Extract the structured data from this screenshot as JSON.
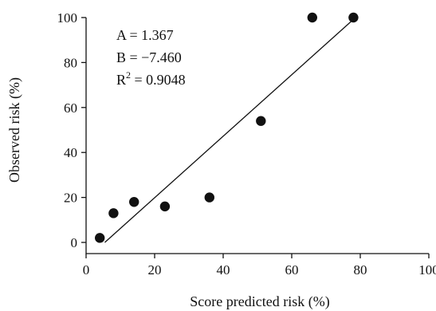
{
  "chart_data": {
    "type": "scatter",
    "xlabel": "Score predicted risk (%)",
    "ylabel": "Observed risk (%)",
    "xlim": [
      0,
      100
    ],
    "ylim": [
      0,
      100
    ],
    "xticks": [
      0,
      20,
      40,
      60,
      80,
      100
    ],
    "yticks": [
      0,
      20,
      40,
      60,
      80,
      100
    ],
    "grid": false,
    "points": [
      {
        "x": 4,
        "y": 2
      },
      {
        "x": 8,
        "y": 13
      },
      {
        "x": 14,
        "y": 18
      },
      {
        "x": 23,
        "y": 16
      },
      {
        "x": 36,
        "y": 20
      },
      {
        "x": 51,
        "y": 54
      },
      {
        "x": 66,
        "y": 100
      },
      {
        "x": 78,
        "y": 100
      }
    ],
    "fit_line": {
      "slope": 1.367,
      "intercept": -7.46,
      "x_range": [
        5.46,
        78.6
      ]
    },
    "annotations": {
      "a": "A = 1.367",
      "b": "B = −7.460",
      "r2_prefix": "R",
      "r2_exp": "2",
      "r2_value": " = 0.9048"
    },
    "colors": {
      "points": "#111111",
      "line": "#111111",
      "axes": "#111111"
    }
  }
}
